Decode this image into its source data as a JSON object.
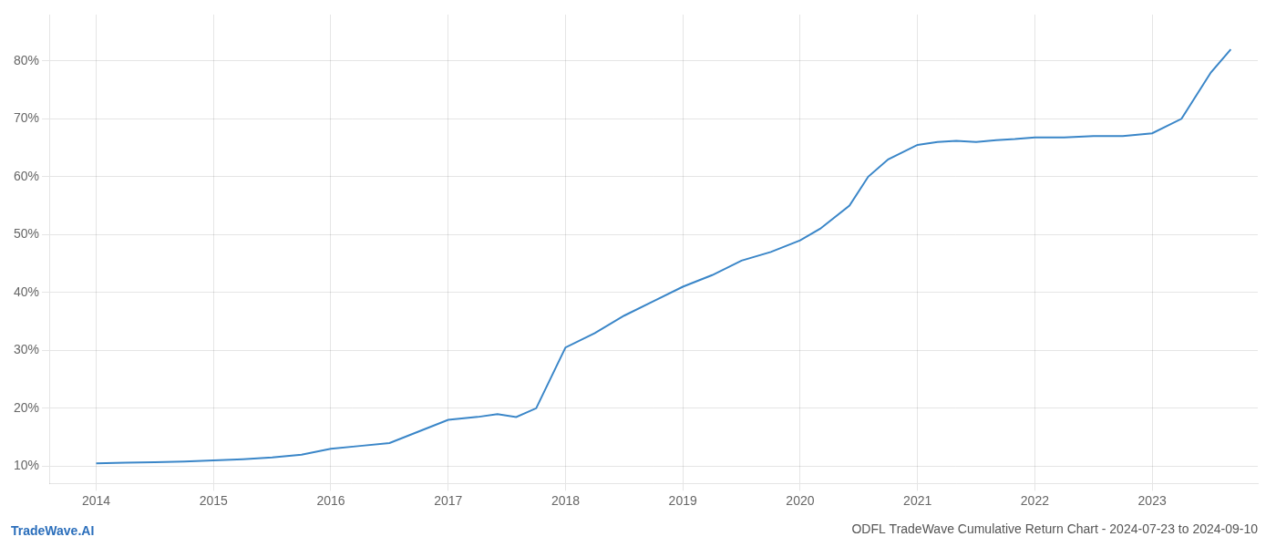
{
  "chart_data": {
    "type": "line",
    "title": "ODFL TradeWave Cumulative Return Chart - 2024-07-23 to 2024-09-10",
    "annotations": [
      {
        "text": "TradeWave.AI",
        "color": "#2a6ebb"
      }
    ],
    "color": "#3a86c8",
    "x": [
      2014.0,
      2014.25,
      2014.5,
      2014.75,
      2015.0,
      2015.25,
      2015.5,
      2015.75,
      2016.0,
      2016.25,
      2016.5,
      2016.75,
      2017.0,
      2017.25,
      2017.42,
      2017.58,
      2017.75,
      2018.0,
      2018.25,
      2018.5,
      2018.75,
      2019.0,
      2019.25,
      2019.5,
      2019.75,
      2020.0,
      2020.17,
      2020.42,
      2020.58,
      2020.75,
      2021.0,
      2021.17,
      2021.33,
      2021.5,
      2021.67,
      2021.83,
      2022.0,
      2022.25,
      2022.5,
      2022.75,
      2023.0,
      2023.25,
      2023.5,
      2023.67
    ],
    "values": [
      10.5,
      10.6,
      10.7,
      10.8,
      11.0,
      11.2,
      11.5,
      12.0,
      13.0,
      13.5,
      14.0,
      16.0,
      18.0,
      18.5,
      19.0,
      18.5,
      20.0,
      30.5,
      33.0,
      36.0,
      38.5,
      41.0,
      43.0,
      45.5,
      47.0,
      49.0,
      51.0,
      55.0,
      60.0,
      63.0,
      65.5,
      66.0,
      66.2,
      66.0,
      66.3,
      66.5,
      66.8,
      66.8,
      67.0,
      67.0,
      67.5,
      70.0,
      78.0,
      82.0
    ],
    "xlim": [
      2013.6,
      2023.9
    ],
    "ylim": [
      7,
      88
    ],
    "xticks": [
      2014,
      2015,
      2016,
      2017,
      2018,
      2019,
      2020,
      2021,
      2022,
      2023
    ],
    "yticks": [
      {
        "value": 10,
        "label": "10%"
      },
      {
        "value": 20,
        "label": "20%"
      },
      {
        "value": 30,
        "label": "30%"
      },
      {
        "value": 40,
        "label": "40%"
      },
      {
        "value": 50,
        "label": "50%"
      },
      {
        "value": 60,
        "label": "60%"
      },
      {
        "value": 70,
        "label": "70%"
      },
      {
        "value": 80,
        "label": "80%"
      }
    ],
    "grid": true
  }
}
